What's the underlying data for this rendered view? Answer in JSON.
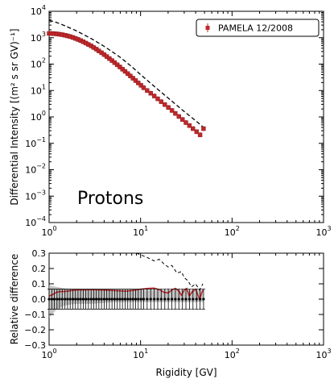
{
  "chart_data": [
    {
      "type": "scatter",
      "panel": "top",
      "ylabel": "Differential Intensity [(m² s sr GV)⁻¹]",
      "xlabel": "",
      "annotation": "Protons",
      "xscale": "log",
      "yscale": "log",
      "xlim": [
        1,
        1000
      ],
      "ylim": [
        0.0001,
        10000
      ],
      "x_ticks": [
        {
          "value": 1,
          "base": "10",
          "exp": "0"
        },
        {
          "value": 10,
          "base": "10",
          "exp": "1"
        },
        {
          "value": 100,
          "base": "10",
          "exp": "2"
        },
        {
          "value": 1000,
          "base": "10",
          "exp": "3"
        }
      ],
      "y_ticks": [
        {
          "value": 0.0001,
          "base": "10",
          "exp": "-4"
        },
        {
          "value": 0.001,
          "base": "10",
          "exp": "-3"
        },
        {
          "value": 0.01,
          "base": "10",
          "exp": "-2"
        },
        {
          "value": 0.1,
          "base": "10",
          "exp": "-1"
        },
        {
          "value": 1,
          "base": "10",
          "exp": "0"
        },
        {
          "value": 10,
          "base": "10",
          "exp": "1"
        },
        {
          "value": 100,
          "base": "10",
          "exp": "2"
        },
        {
          "value": 1000,
          "base": "10",
          "exp": "3"
        },
        {
          "value": 10000,
          "base": "10",
          "exp": "4"
        }
      ],
      "legend_position": "top-right",
      "series": [
        {
          "name": "PAMELA 12/2008",
          "style": "markers-with-errorbars",
          "color": "#c0282b",
          "points": [
            [
              1.0,
              1450
            ],
            [
              1.07,
              1440
            ],
            [
              1.14,
              1420
            ],
            [
              1.22,
              1390
            ],
            [
              1.3,
              1350
            ],
            [
              1.39,
              1300
            ],
            [
              1.49,
              1240
            ],
            [
              1.59,
              1170
            ],
            [
              1.7,
              1100
            ],
            [
              1.82,
              1020
            ],
            [
              1.94,
              940
            ],
            [
              2.07,
              860
            ],
            [
              2.21,
              780
            ],
            [
              2.36,
              700
            ],
            [
              2.52,
              625
            ],
            [
              2.69,
              555
            ],
            [
              2.88,
              490
            ],
            [
              3.07,
              425
            ],
            [
              3.28,
              368
            ],
            [
              3.5,
              316
            ],
            [
              3.74,
              269
            ],
            [
              4.0,
              228
            ],
            [
              4.27,
              193
            ],
            [
              4.56,
              162
            ],
            [
              4.87,
              136
            ],
            [
              5.2,
              113
            ],
            [
              5.56,
              94
            ],
            [
              5.94,
              78
            ],
            [
              6.34,
              64
            ],
            [
              6.77,
              53
            ],
            [
              7.24,
              43.5
            ],
            [
              7.73,
              35.7
            ],
            [
              8.26,
              29.2
            ],
            [
              8.82,
              23.8
            ],
            [
              9.42,
              19.4
            ],
            [
              10.1,
              15.7
            ],
            [
              10.8,
              12.7
            ],
            [
              11.8,
              10.0
            ],
            [
              12.9,
              7.9
            ],
            [
              14.1,
              6.2
            ],
            [
              15.4,
              4.85
            ],
            [
              16.8,
              3.78
            ],
            [
              18.4,
              2.94
            ],
            [
              20.1,
              2.28
            ],
            [
              22.0,
              1.76
            ],
            [
              24.0,
              1.36
            ],
            [
              26.2,
              1.04
            ],
            [
              28.7,
              0.8
            ],
            [
              31.3,
              0.61
            ],
            [
              34.2,
              0.47
            ],
            [
              37.4,
              0.36
            ],
            [
              40.9,
              0.275
            ],
            [
              44.7,
              0.21
            ],
            [
              48.8,
              0.36
            ]
          ]
        },
        {
          "style": "dashed-line",
          "color": "#000000",
          "points": [
            [
              1.0,
              4600
            ],
            [
              1.2,
              3800
            ],
            [
              1.5,
              2800
            ],
            [
              2.0,
              1800
            ],
            [
              2.5,
              1200
            ],
            [
              3.0,
              860
            ],
            [
              4.0,
              470
            ],
            [
              5.0,
              280
            ],
            [
              6.0,
              180
            ],
            [
              8.0,
              80
            ],
            [
              10.0,
              40
            ],
            [
              15.0,
              12
            ],
            [
              20.0,
              5.2
            ],
            [
              30.0,
              1.6
            ],
            [
              40.0,
              0.72
            ],
            [
              48.0,
              0.42
            ]
          ]
        }
      ]
    },
    {
      "type": "line",
      "panel": "bottom",
      "xlabel": "Rigidity [GV]",
      "ylabel": "Relative difference",
      "xscale": "log",
      "yscale": "linear",
      "xlim": [
        1,
        1000
      ],
      "ylim": [
        -0.3,
        0.3
      ],
      "x_ticks": [
        {
          "value": 1,
          "base": "10",
          "exp": "0"
        },
        {
          "value": 10,
          "base": "10",
          "exp": "1"
        },
        {
          "value": 100,
          "base": "10",
          "exp": "2"
        },
        {
          "value": 1000,
          "base": "10",
          "exp": "3"
        }
      ],
      "y_ticks": [
        {
          "value": -0.3,
          "label": "−0.3"
        },
        {
          "value": -0.2,
          "label": "−0.2"
        },
        {
          "value": -0.1,
          "label": "−0.1"
        },
        {
          "value": 0.0,
          "label": "0.0"
        },
        {
          "value": 0.1,
          "label": "0.1"
        },
        {
          "value": 0.2,
          "label": "0.2"
        },
        {
          "value": 0.3,
          "label": "0.3"
        }
      ],
      "band": {
        "color": "#b0b0b0",
        "x": [
          1.0,
          1.2,
          1.5,
          2.0,
          3.0,
          5.0,
          8.0,
          12.0,
          20.0,
          30.0,
          48.0
        ],
        "lower": [
          -0.12,
          -0.07,
          -0.04,
          -0.03,
          -0.03,
          -0.02,
          -0.02,
          -0.02,
          -0.02,
          -0.02,
          -0.02
        ],
        "upper": [
          0.09,
          0.08,
          0.07,
          0.065,
          0.06,
          0.06,
          0.06,
          0.06,
          0.06,
          0.06,
          0.06
        ]
      },
      "series": [
        {
          "style": "solid-line",
          "color": "#c0282b",
          "x": [
            1.0,
            1.1,
            1.2,
            1.35,
            1.5,
            1.7,
            2.0,
            2.4,
            3.0,
            3.6,
            4.5,
            5.6,
            7.0,
            8.5,
            10.0,
            12.0,
            14.0,
            16.0,
            18.0,
            20.0,
            22.0,
            24.0,
            26.0,
            28.0,
            30.0,
            32.0,
            34.0,
            37.0,
            40.0,
            44.0,
            48.0
          ],
          "y": [
            0.02,
            0.03,
            0.045,
            0.05,
            0.05,
            0.055,
            0.06,
            0.06,
            0.062,
            0.06,
            0.058,
            0.055,
            0.052,
            0.058,
            0.065,
            0.07,
            0.072,
            0.062,
            0.045,
            0.04,
            0.06,
            0.07,
            0.055,
            0.025,
            0.06,
            0.07,
            0.02,
            0.05,
            0.065,
            0.0,
            0.06
          ]
        },
        {
          "style": "markers-with-errorbars",
          "color": "#000000",
          "x": [
            1.0,
            1.07,
            1.14,
            1.22,
            1.3,
            1.39,
            1.49,
            1.59,
            1.7,
            1.82,
            1.94,
            2.07,
            2.21,
            2.36,
            2.52,
            2.69,
            2.88,
            3.07,
            3.28,
            3.5,
            3.74,
            4.0,
            4.27,
            4.56,
            4.87,
            5.2,
            5.56,
            5.94,
            6.34,
            6.77,
            7.24,
            7.73,
            8.26,
            8.82,
            9.42,
            10.1,
            10.8,
            11.8,
            12.9,
            14.1,
            15.4,
            16.8,
            18.4,
            20.1,
            22.0,
            24.0,
            26.2,
            28.7,
            31.3,
            34.2,
            37.4,
            40.9,
            44.7,
            48.8
          ],
          "y": [
            0,
            0,
            0,
            0,
            0,
            0,
            0,
            0,
            0,
            0,
            0,
            0,
            0,
            0,
            0,
            0,
            0,
            0,
            0,
            0,
            0,
            0,
            0,
            0,
            0,
            0,
            0,
            0,
            0,
            0,
            0,
            0,
            0,
            0,
            0,
            0,
            0,
            0,
            0,
            0,
            0,
            0,
            0,
            0,
            0,
            0,
            0,
            0,
            0,
            0,
            0,
            0,
            0,
            0
          ],
          "err": [
            0.065,
            0.065,
            0.065,
            0.065,
            0.065,
            0.065,
            0.065,
            0.065,
            0.065,
            0.065,
            0.065,
            0.065,
            0.065,
            0.065,
            0.065,
            0.065,
            0.065,
            0.065,
            0.065,
            0.065,
            0.065,
            0.065,
            0.065,
            0.065,
            0.065,
            0.065,
            0.065,
            0.065,
            0.065,
            0.065,
            0.065,
            0.065,
            0.065,
            0.065,
            0.065,
            0.065,
            0.065,
            0.065,
            0.065,
            0.065,
            0.065,
            0.065,
            0.065,
            0.065,
            0.065,
            0.065,
            0.065,
            0.065,
            0.065,
            0.065,
            0.065,
            0.065,
            0.065,
            0.065
          ]
        },
        {
          "style": "dashed-line",
          "color": "#000000",
          "x": [
            9.0,
            10.0,
            12.0,
            14.0,
            16.0,
            18.0,
            20.0,
            22.0,
            25.0,
            28.0,
            30.0,
            33.0,
            36.0,
            40.0,
            44.0,
            48.0
          ],
          "y": [
            0.3,
            0.29,
            0.27,
            0.25,
            0.26,
            0.23,
            0.21,
            0.22,
            0.17,
            0.18,
            0.14,
            0.12,
            0.08,
            0.1,
            0.06,
            0.1
          ]
        }
      ]
    }
  ]
}
